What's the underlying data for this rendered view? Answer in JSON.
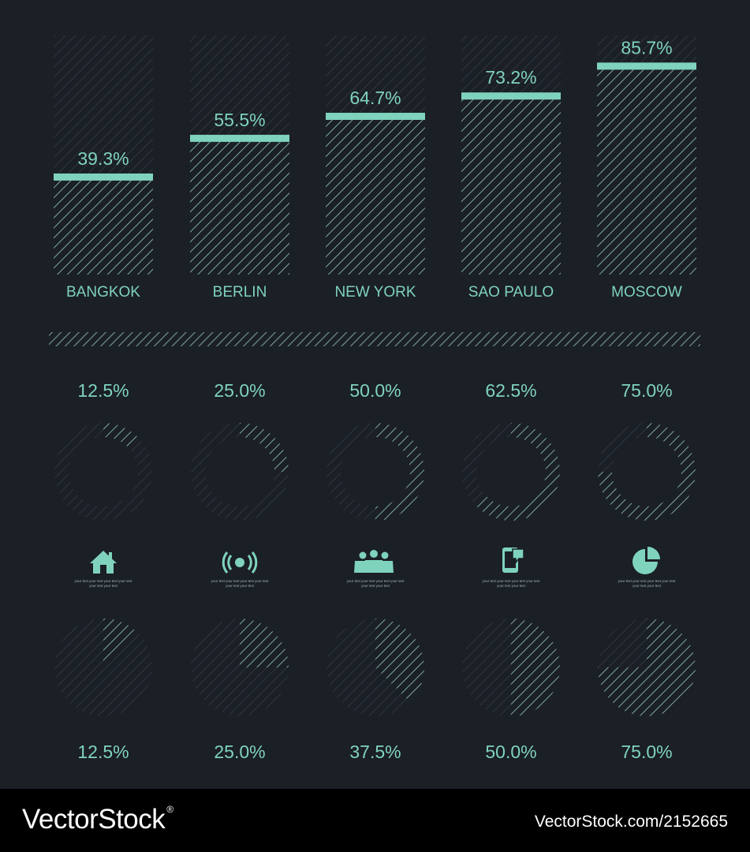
{
  "accent_color": "#7fd3bc",
  "background_color": "#1b1f26",
  "chart_data": [
    {
      "type": "bar",
      "categories": [
        "BANGKOK",
        "BERLIN",
        "NEW YORK",
        "SAO PAULO",
        "MOSCOW"
      ],
      "values": [
        39.3,
        55.5,
        64.7,
        73.2,
        85.7
      ],
      "labels": [
        "39.3%",
        "55.5%",
        "64.7%",
        "73.2%",
        "85.7%"
      ],
      "ylim": [
        0,
        100
      ],
      "grid": false
    },
    {
      "type": "pie",
      "style": "ring",
      "values": [
        12.5,
        25.0,
        50.0,
        62.5,
        75.0
      ],
      "labels": [
        "12.5%",
        "25.0%",
        "50.0%",
        "62.5%",
        "75.0%"
      ]
    },
    {
      "type": "pie",
      "values": [
        12.5,
        25.0,
        37.5,
        50.0,
        75.0
      ],
      "labels": [
        "12.5%",
        "25.0%",
        "37.5%",
        "50.0%",
        "75.0%"
      ]
    }
  ],
  "icons": [
    {
      "name": "house-icon",
      "caption_lines": [
        "your text   your text   your text   your text",
        "your text   your text"
      ]
    },
    {
      "name": "wireless-signal-icon",
      "caption_lines": [
        "your text   your text   your text   your text",
        "your text   your text"
      ]
    },
    {
      "name": "people-group-icon",
      "caption_lines": [
        "your text   your text   your text   your text",
        "your text   your text"
      ]
    },
    {
      "name": "smartphone-message-icon",
      "caption_lines": [
        "your text   your text   your text   your text",
        "your text   your text"
      ]
    },
    {
      "name": "pie-chart-icon",
      "caption_lines": [
        "your text   your text   your text   your text",
        "your text   your text"
      ]
    }
  ],
  "watermark": {
    "logo": "VectorStock",
    "registered": "®",
    "id": "VectorStock.com/2152665"
  }
}
